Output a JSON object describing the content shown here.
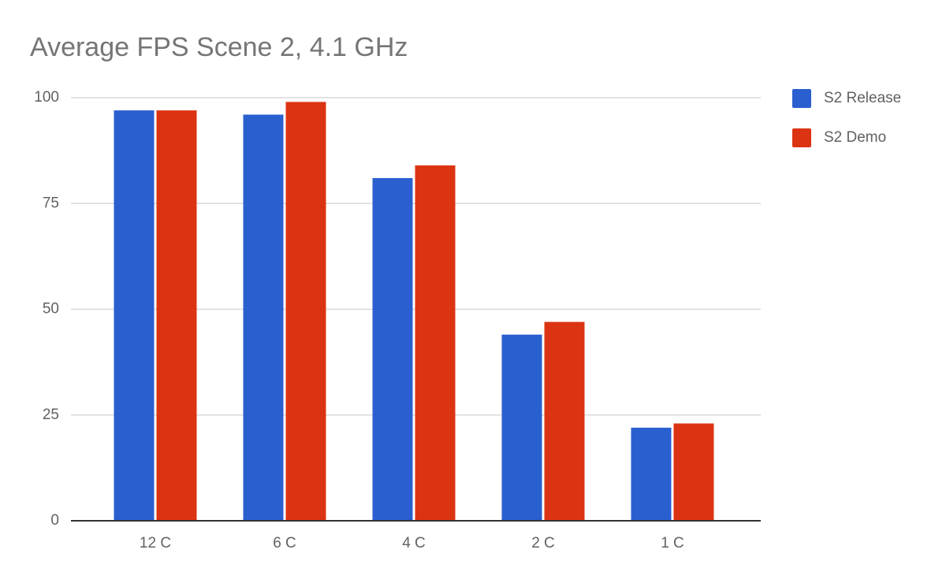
{
  "chart_data": {
    "type": "bar",
    "title": "Average FPS Scene 2, 4.1 GHz",
    "categories": [
      "12 C",
      "6 C",
      "4 C",
      "2 C",
      "1 C"
    ],
    "series": [
      {
        "name": "S2 Release",
        "color": "#2a5fcf",
        "values": [
          97,
          96,
          81,
          44,
          22
        ]
      },
      {
        "name": "S2 Demo",
        "color": "#dc3412",
        "values": [
          97,
          99,
          84,
          47,
          23
        ]
      }
    ],
    "ylim": [
      0,
      100
    ],
    "yticks": [
      0,
      25,
      50,
      75,
      100
    ],
    "grid": true,
    "legend": "right"
  }
}
